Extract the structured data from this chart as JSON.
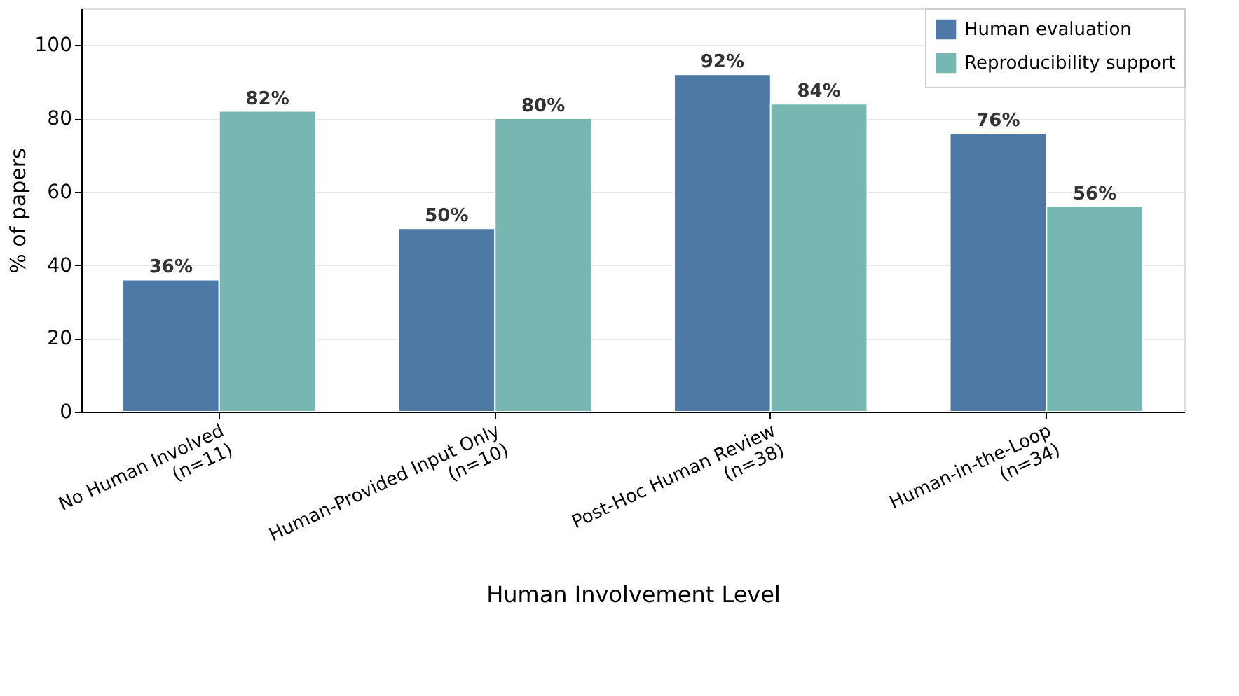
{
  "chart_data": {
    "type": "bar",
    "xlabel": "Human Involvement Level",
    "ylabel": "% of papers",
    "categories": [
      "No Human Involved\n(n=11)",
      "Human-Provided Input Only\n(n=10)",
      "Post-Hoc Human Review\n(n=38)",
      "Human-in-the-Loop\n(n=34)"
    ],
    "series": [
      {
        "name": "Human evaluation",
        "color": "#4e79a7",
        "values": [
          36,
          50,
          92,
          76
        ],
        "value_labels": [
          "36%",
          "50%",
          "92%",
          "76%"
        ]
      },
      {
        "name": "Reproducibility support",
        "color": "#76b7b2",
        "values": [
          82,
          80,
          84,
          56
        ],
        "value_labels": [
          "82%",
          "80%",
          "84%",
          "56%"
        ]
      }
    ],
    "ylim": [
      0,
      110
    ],
    "yticks": [
      0,
      20,
      40,
      60,
      80,
      100
    ],
    "grid": "y",
    "legend": "top right"
  }
}
